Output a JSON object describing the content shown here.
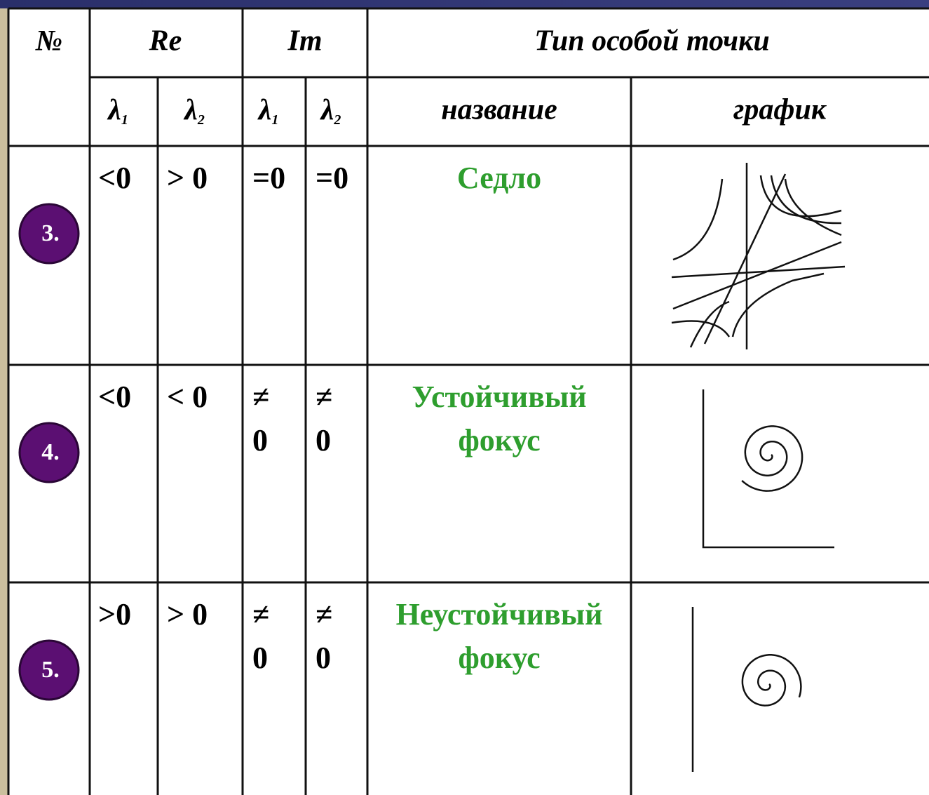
{
  "table": {
    "header": {
      "number": "№",
      "re": "Re",
      "im": "Im",
      "type": "Тип особой точки",
      "lambdas": [
        {
          "symbol": "λ",
          "index": "1"
        },
        {
          "symbol": "λ",
          "index": "2"
        },
        {
          "symbol": "λ",
          "index": "1"
        },
        {
          "symbol": "λ",
          "index": "2"
        }
      ],
      "name": "название",
      "graph": "график"
    },
    "rows": [
      {
        "number": "3.",
        "re1": [
          "<0"
        ],
        "re2": [
          "> 0"
        ],
        "im1": [
          "=0"
        ],
        "im2": [
          "=0"
        ],
        "name": [
          "Седло"
        ]
      },
      {
        "number": "4.",
        "re1": [
          "<0"
        ],
        "re2": [
          "< 0"
        ],
        "im1": [
          "≠",
          "0"
        ],
        "im2": [
          "≠",
          "0"
        ],
        "name": [
          "Устойчивый",
          "фокус"
        ]
      },
      {
        "number": "5.",
        "re1": [
          ">0"
        ],
        "re2": [
          "> 0"
        ],
        "im1": [
          "≠",
          "0"
        ],
        "im2": [
          "≠",
          "0"
        ],
        "name": [
          "Неустойчивый",
          "фокус"
        ]
      }
    ]
  }
}
